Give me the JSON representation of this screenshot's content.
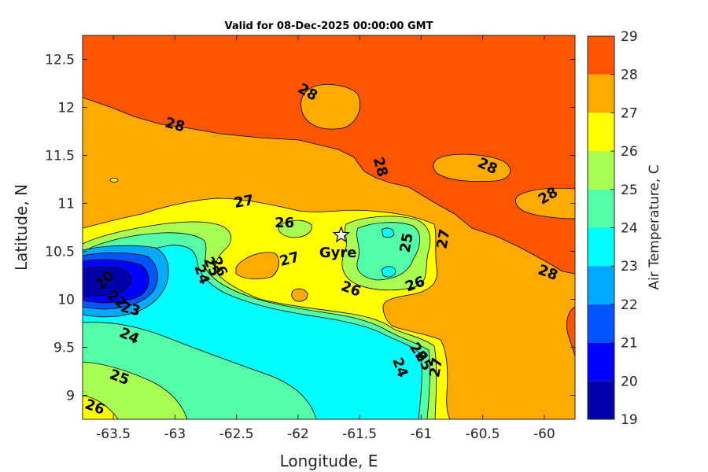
{
  "chart_data": {
    "type": "heatmap",
    "subtype": "filled-contour-map",
    "title": "Valid for 08-Dec-2025 00:00:00 GMT",
    "xlabel": "Longitude, E",
    "ylabel": "Latitude, N",
    "xlim": [
      -63.75,
      -59.75
    ],
    "ylim": [
      8.75,
      12.75
    ],
    "xticks": [
      -63.5,
      -63,
      -62.5,
      -62,
      -61.5,
      -61,
      -60.5,
      -60
    ],
    "xtick_labels": [
      "-63.5",
      "-63",
      "-62.5",
      "-62",
      "-61.5",
      "-61",
      "-60.5",
      "-60"
    ],
    "yticks": [
      9,
      9.5,
      10,
      10.5,
      11,
      11.5,
      12,
      12.5
    ],
    "ytick_labels": [
      "9",
      "9.5",
      "10",
      "10.5",
      "11",
      "11.5",
      "12",
      "12.5"
    ],
    "colorbar": {
      "label": "Air Temperature, C",
      "min": 19,
      "max": 29,
      "ticks": [
        "19",
        "20",
        "21",
        "22",
        "23",
        "24",
        "25",
        "26",
        "27",
        "28",
        "29"
      ],
      "levels": [
        {
          "from": 19,
          "to": 20,
          "color": "#0000aa"
        },
        {
          "from": 20,
          "to": 21,
          "color": "#0000ff"
        },
        {
          "from": 21,
          "to": 22,
          "color": "#0055ff"
        },
        {
          "from": 22,
          "to": 23,
          "color": "#00aaff"
        },
        {
          "from": 23,
          "to": 24,
          "color": "#00ffff"
        },
        {
          "from": 24,
          "to": 25,
          "color": "#55ffaa"
        },
        {
          "from": 25,
          "to": 26,
          "color": "#aaff55"
        },
        {
          "from": 26,
          "to": 27,
          "color": "#ffff00"
        },
        {
          "from": 27,
          "to": 28,
          "color": "#ffaa00"
        },
        {
          "from": 28,
          "to": 29,
          "color": "#ff5500"
        }
      ]
    },
    "contour_labels": [
      {
        "text": "28",
        "lon": -63.0,
        "lat": 11.82
      },
      {
        "text": "28",
        "lon": -61.92,
        "lat": 12.16
      },
      {
        "text": "28",
        "lon": -61.33,
        "lat": 11.38
      },
      {
        "text": "28",
        "lon": -60.46,
        "lat": 11.39
      },
      {
        "text": "28",
        "lon": -59.97,
        "lat": 11.08
      },
      {
        "text": "28",
        "lon": -59.97,
        "lat": 10.28
      },
      {
        "text": "27",
        "lon": -62.44,
        "lat": 11.02
      },
      {
        "text": "27",
        "lon": -62.07,
        "lat": 10.42
      },
      {
        "text": "27",
        "lon": -60.82,
        "lat": 10.63
      },
      {
        "text": "27",
        "lon": -60.88,
        "lat": 9.29
      },
      {
        "text": "26",
        "lon": -62.11,
        "lat": 10.8
      },
      {
        "text": "26",
        "lon": -61.57,
        "lat": 10.11
      },
      {
        "text": "26",
        "lon": -61.05,
        "lat": 10.16
      },
      {
        "text": "26",
        "lon": -62.64,
        "lat": 10.34
      },
      {
        "text": "26",
        "lon": -61.02,
        "lat": 9.45
      },
      {
        "text": "26",
        "lon": -63.65,
        "lat": 8.88
      },
      {
        "text": "25",
        "lon": -62.7,
        "lat": 10.34
      },
      {
        "text": "25",
        "lon": -61.12,
        "lat": 10.59
      },
      {
        "text": "25",
        "lon": -60.98,
        "lat": 9.36
      },
      {
        "text": "25",
        "lon": -63.45,
        "lat": 9.19
      },
      {
        "text": "24",
        "lon": -62.78,
        "lat": 10.26
      },
      {
        "text": "24",
        "lon": -61.17,
        "lat": 9.29
      },
      {
        "text": "24",
        "lon": -63.37,
        "lat": 9.62
      },
      {
        "text": "23",
        "lon": -63.36,
        "lat": 9.9
      },
      {
        "text": "22",
        "lon": -63.47,
        "lat": 10.0
      },
      {
        "text": "20",
        "lon": -63.57,
        "lat": 10.2
      }
    ],
    "stations": [
      {
        "name": "Gyre",
        "lon": -61.65,
        "lat": 10.67
      }
    ]
  }
}
